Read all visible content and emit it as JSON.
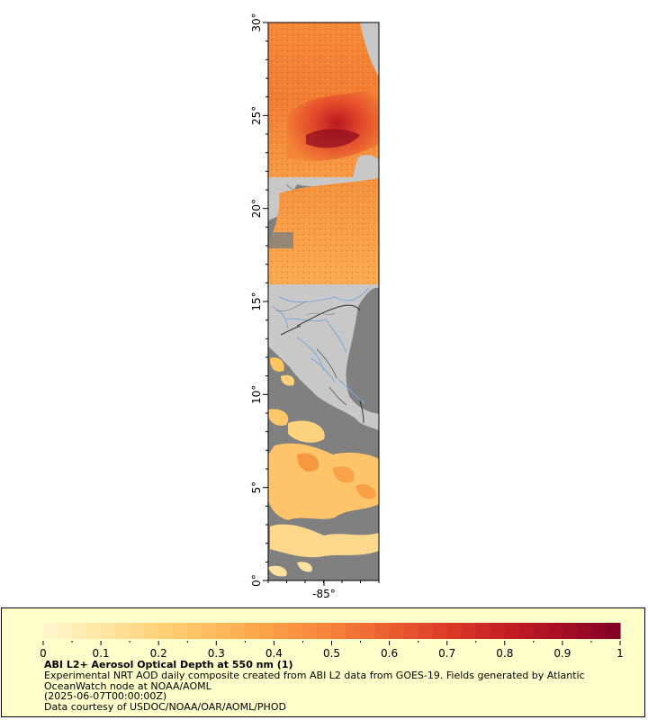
{
  "map": {
    "lat_min": 0,
    "lat_max": 30,
    "lat_ticks": [
      {
        "value": 0,
        "label": "0°"
      },
      {
        "value": 5,
        "label": "5°"
      },
      {
        "value": 10,
        "label": "10°"
      },
      {
        "value": 15,
        "label": "15°"
      },
      {
        "value": 20,
        "label": "20°"
      },
      {
        "value": 25,
        "label": "25°"
      },
      {
        "value": 30,
        "label": "30°"
      }
    ],
    "lon_ticks": [
      {
        "value": -85,
        "label": "-85°"
      }
    ],
    "colors": {
      "land": "#c8c8c8",
      "ocean_nodata": "#808080",
      "rivers": "#7fa9d6",
      "borders": "#333333",
      "high_aod": "#8b0a1e",
      "mid_aod": "#f27a24",
      "low_aod": "#ffd27a"
    }
  },
  "legend": {
    "title": "ABI L2+ Aerosol Optical Depth at 550 nm (1)",
    "description": "Experimental NRT AOD daily composite created from ABI L2 data from GOES-19. Fields generated by Atlantic OceanWatch node at NOAA/AOML",
    "date": "(2025-06-07T00:00:00Z)",
    "credit": "Data courtesy of USDOC/NOAA/OAR/AOML/PHOD",
    "range": [
      0,
      1
    ],
    "tick_labels": [
      "0",
      "0.1",
      "0.2",
      "0.3",
      "0.4",
      "0.5",
      "0.6",
      "0.7",
      "0.8",
      "0.9",
      "1"
    ],
    "colormap": [
      "#fff7cf",
      "#ffe7a6",
      "#ffd27a",
      "#fdba5c",
      "#fb9e46",
      "#f5813a",
      "#eb5f30",
      "#dc3a28",
      "#c61f24",
      "#a50e25",
      "#800026"
    ],
    "background": "#ffffcc"
  }
}
